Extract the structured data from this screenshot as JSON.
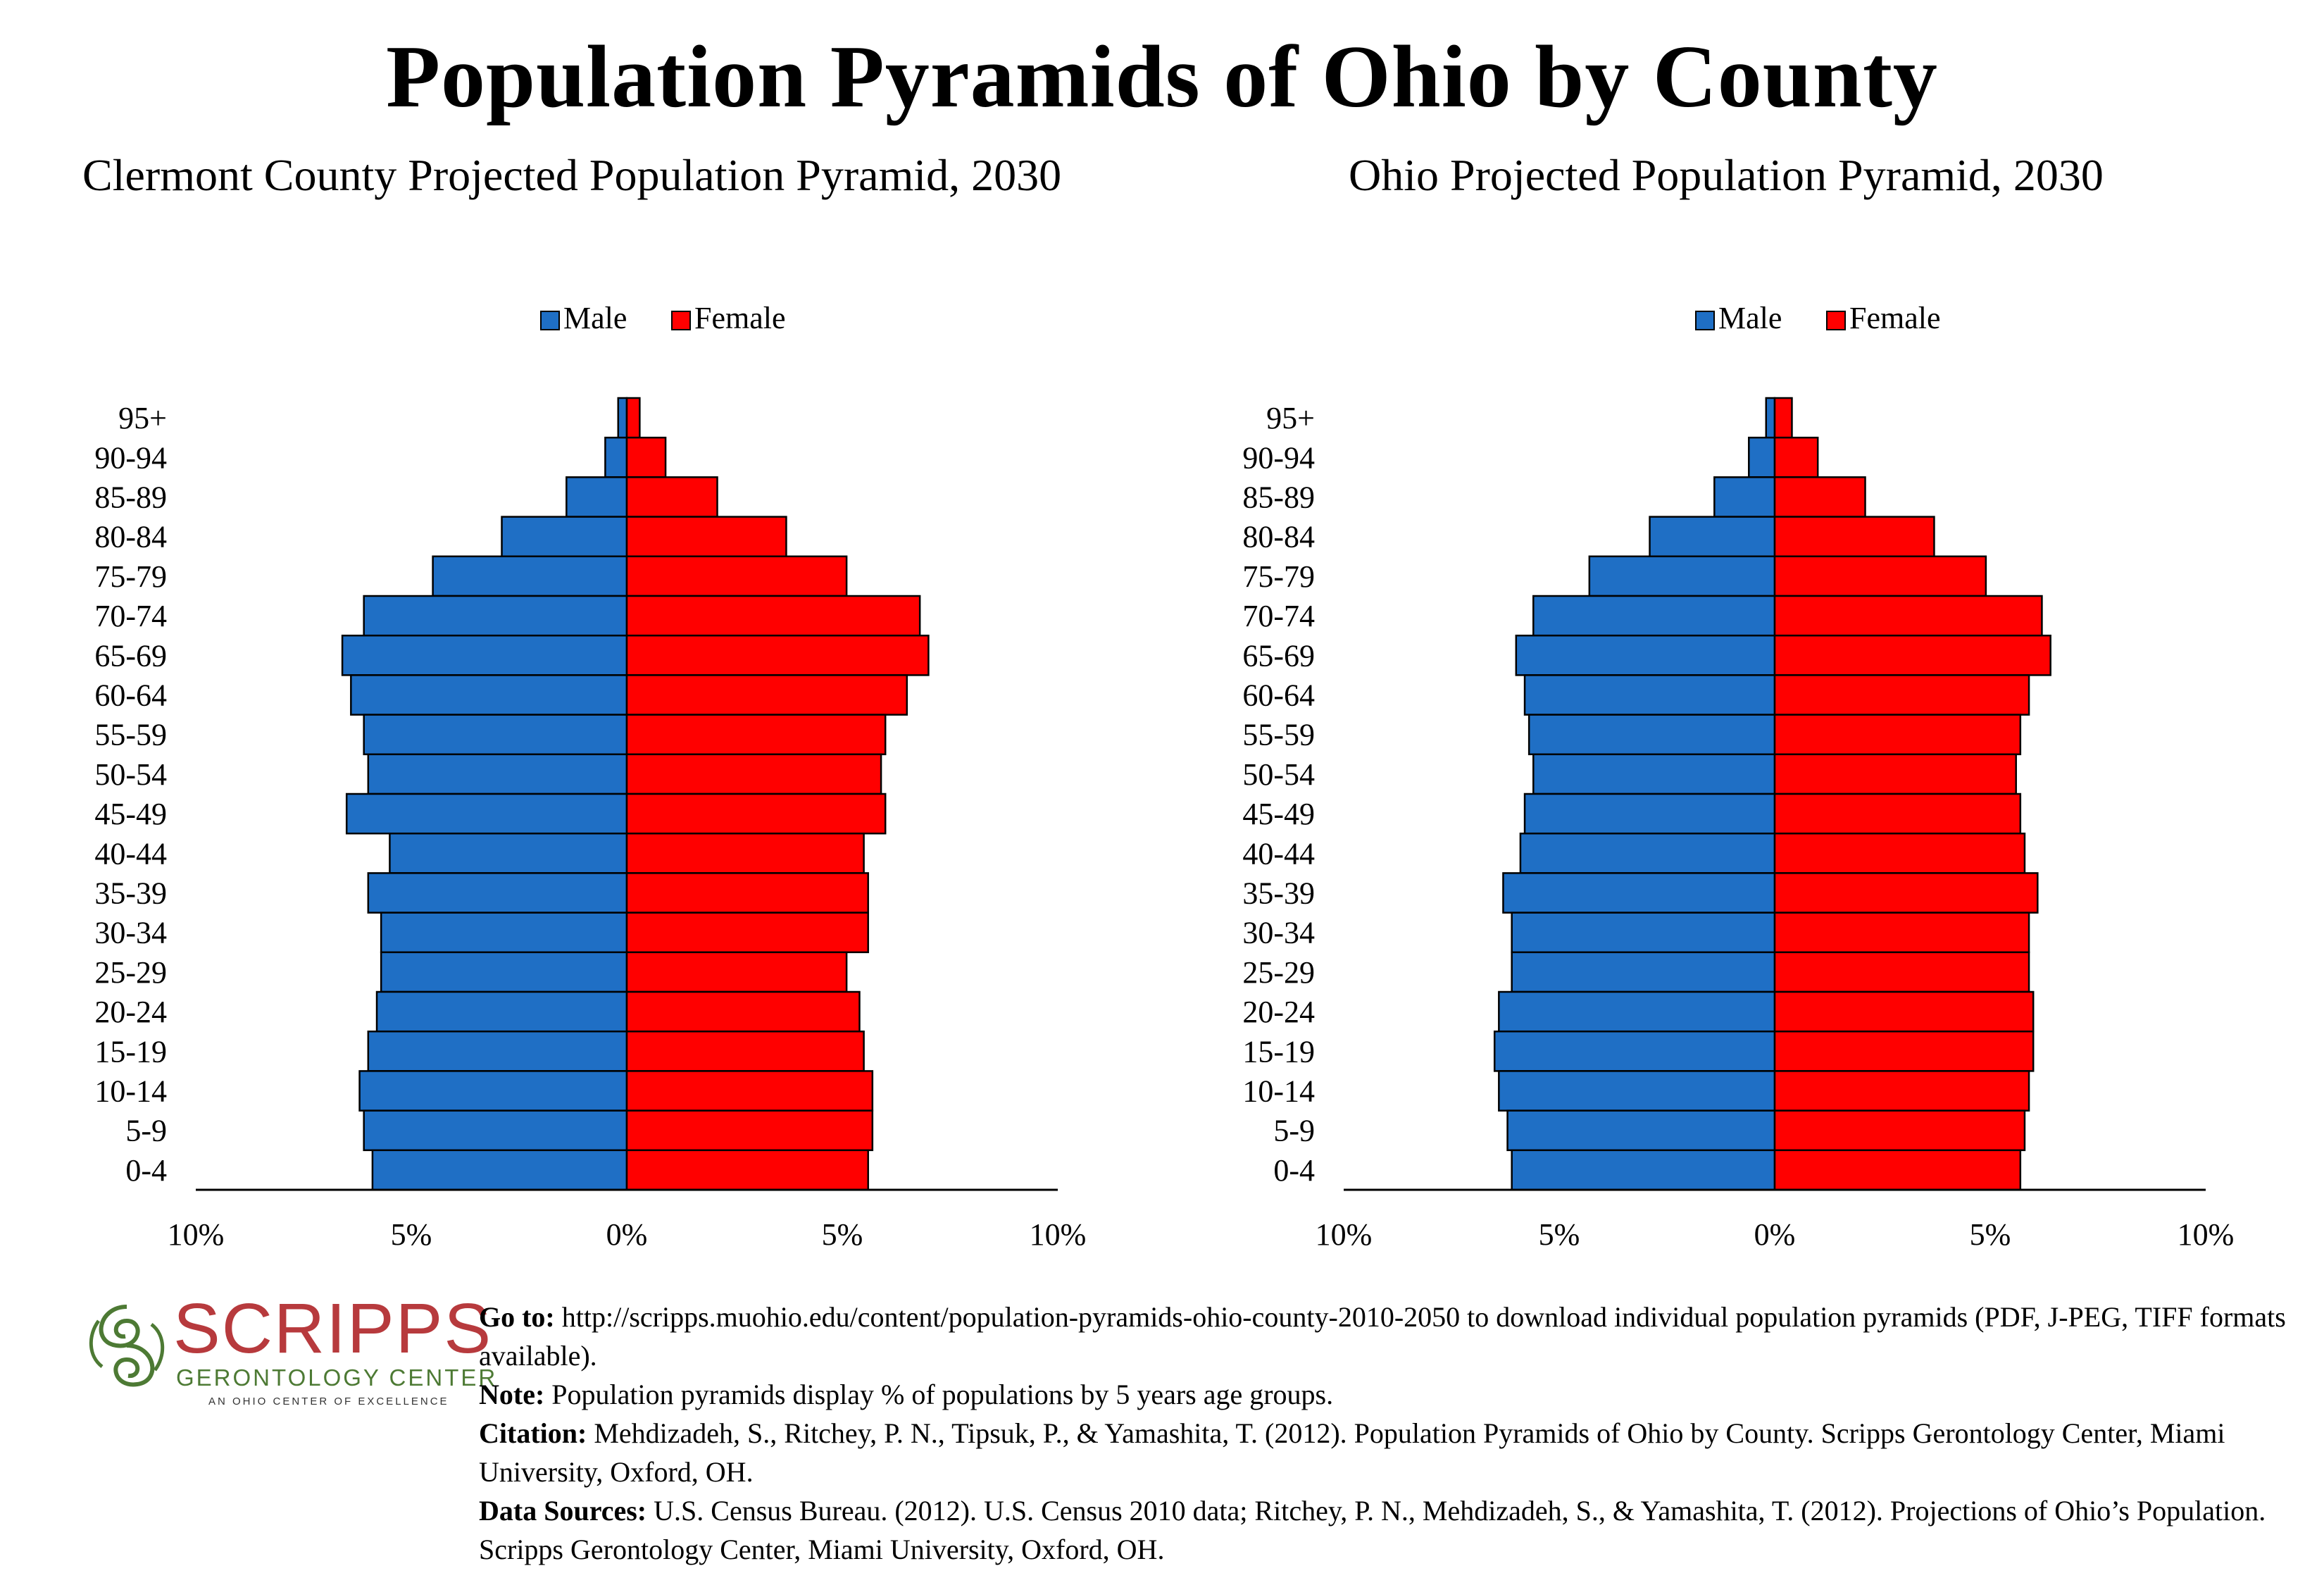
{
  "title": "Population Pyramids of Ohio by County",
  "charts": {
    "left_subtitle": "Clermont County Projected Population Pyramid, 2030",
    "right_subtitle": "Ohio Projected Population Pyramid, 2030"
  },
  "legend": {
    "male": "Male",
    "female": "Female"
  },
  "colors": {
    "male": "#1f6fc5",
    "female": "#ff0000",
    "outline": "#000000",
    "logo_red": "#b73a3d",
    "logo_green": "#4d7a34"
  },
  "chart_data": [
    {
      "type": "bar",
      "orientation": "horizontal-pyramid",
      "title": "Clermont County Projected Population Pyramid, 2030",
      "categories": [
        "95+",
        "90-94",
        "85-89",
        "80-84",
        "75-79",
        "70-74",
        "65-69",
        "60-64",
        "55-59",
        "50-54",
        "45-49",
        "40-44",
        "35-39",
        "30-34",
        "25-29",
        "20-24",
        "15-19",
        "10-14",
        "5-9",
        "0-4"
      ],
      "series": [
        {
          "name": "Male",
          "values": [
            0.2,
            0.5,
            1.4,
            2.9,
            4.5,
            6.1,
            6.6,
            6.4,
            6.1,
            6.0,
            6.5,
            5.5,
            6.0,
            5.7,
            5.7,
            5.8,
            6.0,
            6.2,
            6.1,
            5.9
          ]
        },
        {
          "name": "Female",
          "values": [
            0.3,
            0.9,
            2.1,
            3.7,
            5.1,
            6.8,
            7.0,
            6.5,
            6.0,
            5.9,
            6.0,
            5.5,
            5.6,
            5.6,
            5.1,
            5.4,
            5.5,
            5.7,
            5.7,
            5.6
          ]
        }
      ],
      "x_ticks": [
        "10%",
        "5%",
        "0%",
        "5%",
        "10%"
      ],
      "xlim": [
        -10,
        10
      ],
      "legend_position": "top-center"
    },
    {
      "type": "bar",
      "orientation": "horizontal-pyramid",
      "title": "Ohio Projected Population Pyramid, 2030",
      "categories": [
        "95+",
        "90-94",
        "85-89",
        "80-84",
        "75-79",
        "70-74",
        "65-69",
        "60-64",
        "55-59",
        "50-54",
        "45-49",
        "40-44",
        "35-39",
        "30-34",
        "25-29",
        "20-24",
        "15-19",
        "10-14",
        "5-9",
        "0-4"
      ],
      "series": [
        {
          "name": "Male",
          "values": [
            0.2,
            0.6,
            1.4,
            2.9,
            4.3,
            5.6,
            6.0,
            5.8,
            5.7,
            5.6,
            5.8,
            5.9,
            6.3,
            6.1,
            6.1,
            6.4,
            6.5,
            6.4,
            6.2,
            6.1
          ]
        },
        {
          "name": "Female",
          "values": [
            0.4,
            1.0,
            2.1,
            3.7,
            4.9,
            6.2,
            6.4,
            5.9,
            5.7,
            5.6,
            5.7,
            5.8,
            6.1,
            5.9,
            5.9,
            6.0,
            6.0,
            5.9,
            5.8,
            5.7
          ]
        }
      ],
      "x_ticks": [
        "10%",
        "5%",
        "0%",
        "5%",
        "10%"
      ],
      "xlim": [
        -10,
        10
      ],
      "legend_position": "top-center"
    }
  ],
  "logo": {
    "name": "SCRIPPS",
    "line2": "GERONTOLOGY CENTER",
    "line3": "AN OHIO CENTER OF EXCELLENCE"
  },
  "footer": {
    "goto_label": "Go to:",
    "goto_text": " http://scripps.muohio.edu/content/population-pyramids-ohio-county-2010-2050 to download individual population pyramids (PDF, J-PEG, TIFF formats available).",
    "note_label": "Note:",
    "note_text": " Population pyramids display % of populations by 5 years age groups.",
    "citation_label": "Citation:",
    "citation_text": " Mehdizadeh, S., Ritchey, P. N., Tipsuk, P., & Yamashita, T. (2012). Population Pyramids of Ohio by County. Scripps Gerontology Center, Miami University, Oxford, OH.",
    "sources_label": "Data Sources:",
    "sources_text": " U.S. Census Bureau. (2012). U.S. Census 2010 data; Ritchey, P. N., Mehdizadeh, S., & Yamashita, T. (2012). Projections of Ohio’s Population. Scripps Gerontology Center, Miami University, Oxford, OH."
  }
}
